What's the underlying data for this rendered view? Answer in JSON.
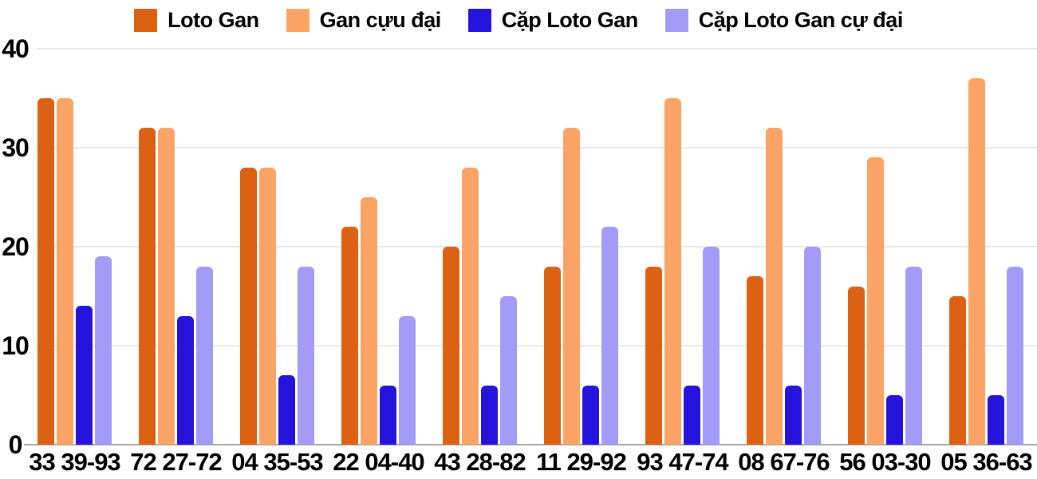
{
  "chart_data": {
    "type": "bar",
    "title": "",
    "xlabel": "",
    "ylabel": "",
    "categories": [
      "33 39-93",
      "72 27-72",
      "04 35-53",
      "22 04-40",
      "43 28-82",
      "11 29-92",
      "93 47-74",
      "08 67-76",
      "56 03-30",
      "05 36-63"
    ],
    "series": [
      {
        "id": "loto-gan",
        "name": "Loto Gan",
        "color": "#dc6112",
        "values": [
          35,
          32,
          28,
          22,
          20,
          18,
          18,
          17,
          16,
          15
        ]
      },
      {
        "id": "gan-cuu-dai",
        "name": "Gan cựu đại",
        "color": "#fca366",
        "values": [
          35,
          32,
          28,
          25,
          28,
          32,
          35,
          32,
          29,
          37
        ]
      },
      {
        "id": "cap-loto-gan",
        "name": "Cặp Loto Gan",
        "color": "#2513dc",
        "values": [
          14,
          13,
          7,
          6,
          6,
          6,
          6,
          6,
          5,
          5
        ]
      },
      {
        "id": "cap-loto-gan-cu-dai",
        "name": "Cặp Loto Gan cự đại",
        "color": "#a39bf7",
        "values": [
          19,
          18,
          18,
          13,
          15,
          22,
          20,
          20,
          18,
          18
        ]
      }
    ],
    "ylim": [
      0,
      40
    ],
    "yticks": [
      40,
      30,
      20,
      10,
      0
    ],
    "grid": true,
    "legend_position": "top",
    "background_color": "#ffffff",
    "gridline_color": "#e8e8e8",
    "axis_line_color": "#a8a8a8",
    "text_color": "#000000"
  }
}
